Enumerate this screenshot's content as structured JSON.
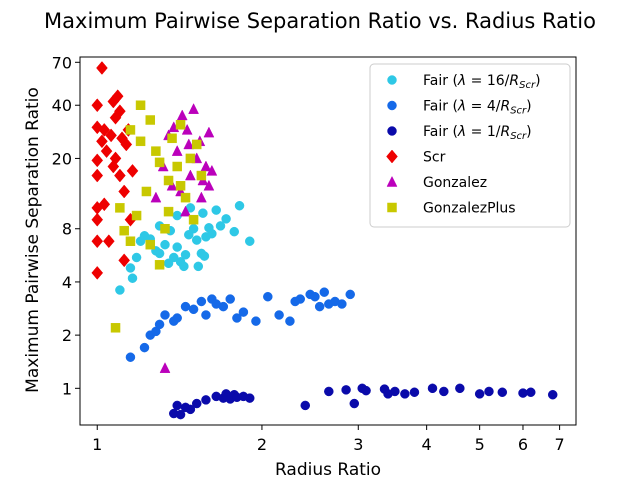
{
  "chart_data": {
    "type": "scatter",
    "title": "Maximum Pairwise Separation Ratio vs. Radius Ratio",
    "xlabel": "Radius Ratio",
    "ylabel": "Maximum Pairwise Separation Ratio",
    "xscale": "log",
    "yscale": "log",
    "xlim": [
      0.93,
      7.5
    ],
    "ylim": [
      0.62,
      75
    ],
    "xticks": [
      1,
      2,
      3,
      4,
      5,
      6,
      7
    ],
    "xtick_labels": [
      "1",
      "2",
      "3",
      "4",
      "5",
      "6",
      "7"
    ],
    "yticks": [
      1,
      2,
      4,
      8,
      20,
      40,
      70
    ],
    "ytick_labels": [
      "1",
      "2",
      "4",
      "8",
      "20",
      "40",
      "70"
    ],
    "grid": false,
    "legend_position": "top-right",
    "series": [
      {
        "name": "Fair (λ=16/R_Scr)",
        "label_main": "Fair (",
        "label_lambda": "λ",
        "label_value": " = 16/",
        "label_R": "R",
        "label_sub": "Scr",
        "label_close": ")",
        "marker": "circle",
        "color": "#2ec8e6",
        "x": [
          1.1,
          1.15,
          1.16,
          1.18,
          1.2,
          1.22,
          1.25,
          1.28,
          1.3,
          1.33,
          1.35,
          1.36,
          1.38,
          1.4,
          1.42,
          1.44,
          1.45,
          1.47,
          1.5,
          1.52,
          1.53,
          1.55,
          1.57,
          1.58,
          1.6,
          1.62,
          1.65,
          1.68,
          1.72,
          1.78,
          1.82,
          1.9,
          1.3,
          1.4,
          1.48,
          1.56
        ],
        "y": [
          3.6,
          4.8,
          4.2,
          5.5,
          6.8,
          7.3,
          7.0,
          6.0,
          5.8,
          6.5,
          5.1,
          7.8,
          5.5,
          6.3,
          5.2,
          4.9,
          5.7,
          7.4,
          8.0,
          6.9,
          4.9,
          5.8,
          5.6,
          7.2,
          8.1,
          7.5,
          10.2,
          8.3,
          9.1,
          7.7,
          10.8,
          6.8,
          8.3,
          9.5,
          10.5,
          9.8
        ]
      },
      {
        "name": "Fair (λ=4/R_Scr)",
        "label_main": "Fair (",
        "label_lambda": "λ",
        "label_value": " = 4/",
        "label_R": "R",
        "label_sub": "Scr",
        "label_close": ")",
        "marker": "circle",
        "color": "#1569e8",
        "x": [
          1.15,
          1.22,
          1.25,
          1.28,
          1.3,
          1.33,
          1.38,
          1.4,
          1.45,
          1.5,
          1.55,
          1.58,
          1.62,
          1.65,
          1.7,
          1.75,
          1.8,
          1.85,
          1.95,
          2.05,
          2.15,
          2.25,
          2.35,
          2.45,
          2.55,
          2.65,
          2.72,
          2.8,
          2.9,
          2.6,
          2.5,
          2.3
        ],
        "y": [
          1.5,
          1.7,
          2.0,
          2.1,
          2.3,
          2.6,
          2.4,
          2.5,
          2.9,
          2.8,
          3.1,
          2.6,
          3.2,
          3.0,
          2.9,
          3.2,
          2.5,
          2.7,
          2.4,
          3.3,
          2.6,
          2.4,
          3.2,
          3.4,
          2.9,
          3.0,
          3.1,
          3.0,
          3.4,
          3.5,
          3.3,
          3.1
        ]
      },
      {
        "name": "Fair (λ=1/R_Scr)",
        "label_main": "Fair (",
        "label_lambda": "λ",
        "label_value": " = 1/",
        "label_R": "R",
        "label_sub": "Scr",
        "label_close": ")",
        "marker": "circle",
        "color": "#0a0aaa",
        "x": [
          1.38,
          1.4,
          1.42,
          1.45,
          1.48,
          1.52,
          1.58,
          1.65,
          1.7,
          1.72,
          1.75,
          1.78,
          1.8,
          1.85,
          1.9,
          2.4,
          2.65,
          2.85,
          2.95,
          3.05,
          3.1,
          3.35,
          3.4,
          3.5,
          3.65,
          3.8,
          4.1,
          4.3,
          4.6,
          5.0,
          5.2,
          5.5,
          6.0,
          6.2,
          6.8
        ],
        "y": [
          0.72,
          0.8,
          0.71,
          0.78,
          0.76,
          0.82,
          0.86,
          0.9,
          0.88,
          0.93,
          0.87,
          0.92,
          0.89,
          0.9,
          0.88,
          0.8,
          0.96,
          0.98,
          0.82,
          1.0,
          0.97,
          0.99,
          0.93,
          0.96,
          0.93,
          0.95,
          1.0,
          0.96,
          1.0,
          0.93,
          0.96,
          0.95,
          0.94,
          0.95,
          0.92
        ]
      },
      {
        "name": "Scr",
        "label_main": "Scr",
        "marker": "diamond",
        "color": "#ee0000",
        "x": [
          1.0,
          1.0,
          1.0,
          1.0,
          1.0,
          1.0,
          1.0,
          1.0,
          1.02,
          1.02,
          1.03,
          1.03,
          1.04,
          1.05,
          1.06,
          1.07,
          1.07,
          1.08,
          1.08,
          1.09,
          1.1,
          1.1,
          1.11,
          1.12,
          1.12,
          1.13,
          1.14,
          1.15,
          1.16
        ],
        "y": [
          4.5,
          6.8,
          9.0,
          10.5,
          16.0,
          19.5,
          30.0,
          40.0,
          65.0,
          25.0,
          11.0,
          29.0,
          22.0,
          6.8,
          27.0,
          18.0,
          42.0,
          34.0,
          20.0,
          45.0,
          16.0,
          37.0,
          26.0,
          5.3,
          13.0,
          24.0,
          29.0,
          9.0,
          17.0
        ]
      },
      {
        "name": "Gonzalez",
        "label_main": "Gonzalez",
        "marker": "triangle",
        "color": "#bb00bb",
        "x": [
          1.28,
          1.32,
          1.35,
          1.37,
          1.4,
          1.43,
          1.46,
          1.48,
          1.5,
          1.52,
          1.54,
          1.56,
          1.58,
          1.6,
          1.62,
          1.38,
          1.42,
          1.47,
          1.33,
          1.55,
          1.6,
          1.45
        ],
        "y": [
          12.0,
          18.0,
          27.0,
          14.0,
          22.0,
          35.0,
          29.0,
          16.0,
          38.0,
          20.0,
          25.0,
          15.0,
          18.0,
          14.0,
          17.0,
          30.0,
          13.0,
          24.0,
          1.3,
          12.0,
          28.0,
          10.0
        ]
      },
      {
        "name": "GonzalezPlus",
        "label_main": "GonzalezPlus",
        "marker": "square",
        "color": "#c8c800",
        "x": [
          1.08,
          1.1,
          1.12,
          1.15,
          1.18,
          1.2,
          1.23,
          1.25,
          1.28,
          1.3,
          1.33,
          1.35,
          1.37,
          1.4,
          1.42,
          1.45,
          1.48,
          1.5,
          1.52,
          1.55,
          1.25,
          1.3,
          1.35,
          1.42,
          1.2,
          1.15
        ],
        "y": [
          2.2,
          10.5,
          7.8,
          29.0,
          9.5,
          40.0,
          13.0,
          33.0,
          22.0,
          19.0,
          8.0,
          15.0,
          26.0,
          18.0,
          31.0,
          12.0,
          20.0,
          9.0,
          24.0,
          16.0,
          6.5,
          5.0,
          10.0,
          14.0,
          25.0,
          6.8
        ]
      }
    ]
  }
}
